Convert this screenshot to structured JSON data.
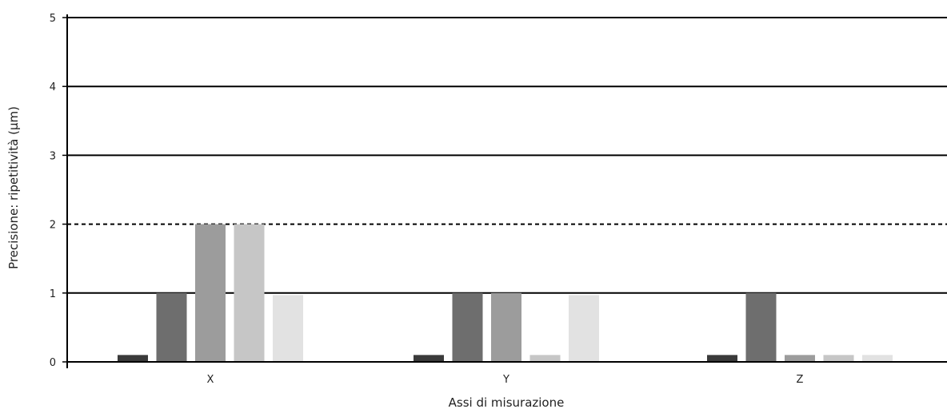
{
  "chart_data": {
    "type": "bar",
    "xlabel": "Assi di misurazione",
    "ylabel": "Precisione: ripetitività (µm)",
    "ylim": [
      0,
      5
    ],
    "yticks": [
      "0",
      "1",
      "2",
      "3",
      "4",
      "5"
    ],
    "categories": [
      "X",
      "Y",
      "Z"
    ],
    "grid": true,
    "reference_line": {
      "value": 2,
      "style": "dashed"
    },
    "series": [
      {
        "color": "#3a3a3a",
        "values": [
          0.1,
          0.1,
          0.1
        ]
      },
      {
        "color": "#6e6e6e",
        "values": [
          1,
          1,
          1
        ]
      },
      {
        "color": "#9c9c9c",
        "values": [
          2,
          1,
          0.1
        ]
      },
      {
        "color": "#c6c6c6",
        "values": [
          2,
          0.1,
          0.1
        ]
      },
      {
        "color": "#e2e2e2",
        "values": [
          0.97,
          0.97,
          0.1
        ]
      }
    ]
  }
}
